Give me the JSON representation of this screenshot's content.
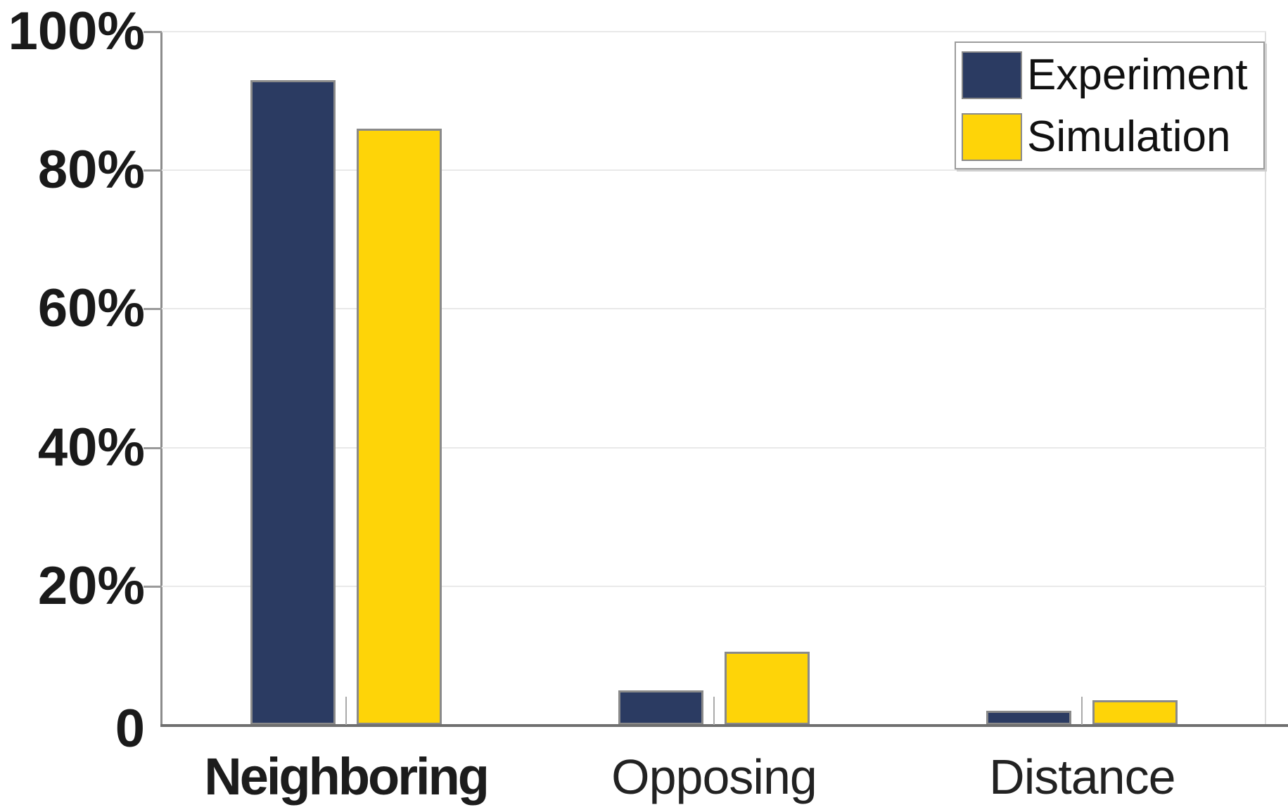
{
  "chart_data": {
    "type": "bar",
    "title": "",
    "xlabel": "",
    "ylabel": "",
    "categories": [
      "Neighboring",
      "Opposing",
      "Distance"
    ],
    "bold_categories": [
      "Neighboring"
    ],
    "series": [
      {
        "name": "Experiment",
        "color": "#2b3b62",
        "values": [
          93,
          5,
          2
        ]
      },
      {
        "name": "Simulation",
        "color": "#fed408",
        "values": [
          86,
          10.5,
          3.5
        ]
      }
    ],
    "ylim": [
      0,
      100
    ],
    "ytick_values": [
      100,
      80,
      60,
      40,
      20,
      0
    ],
    "ytick_labels": [
      "100%",
      "80%",
      "60%",
      "40%",
      "20%",
      "0"
    ],
    "grid": "horizontal",
    "legend_position": "top-right"
  },
  "legend": {
    "items": [
      {
        "label": "Experiment",
        "color": "#2b3b62"
      },
      {
        "label": "Simulation",
        "color": "#fed408"
      }
    ]
  },
  "colors": {
    "background": "#ffffff",
    "experiment_bar": "#2b3b62",
    "simulation_bar": "#fed408",
    "bar_outline": "#8a8a8a",
    "gridline": "#e9e9e9",
    "axis_line": "#6f6f6f",
    "tick": "#9a9a9a",
    "text": "#1a1a1a"
  }
}
